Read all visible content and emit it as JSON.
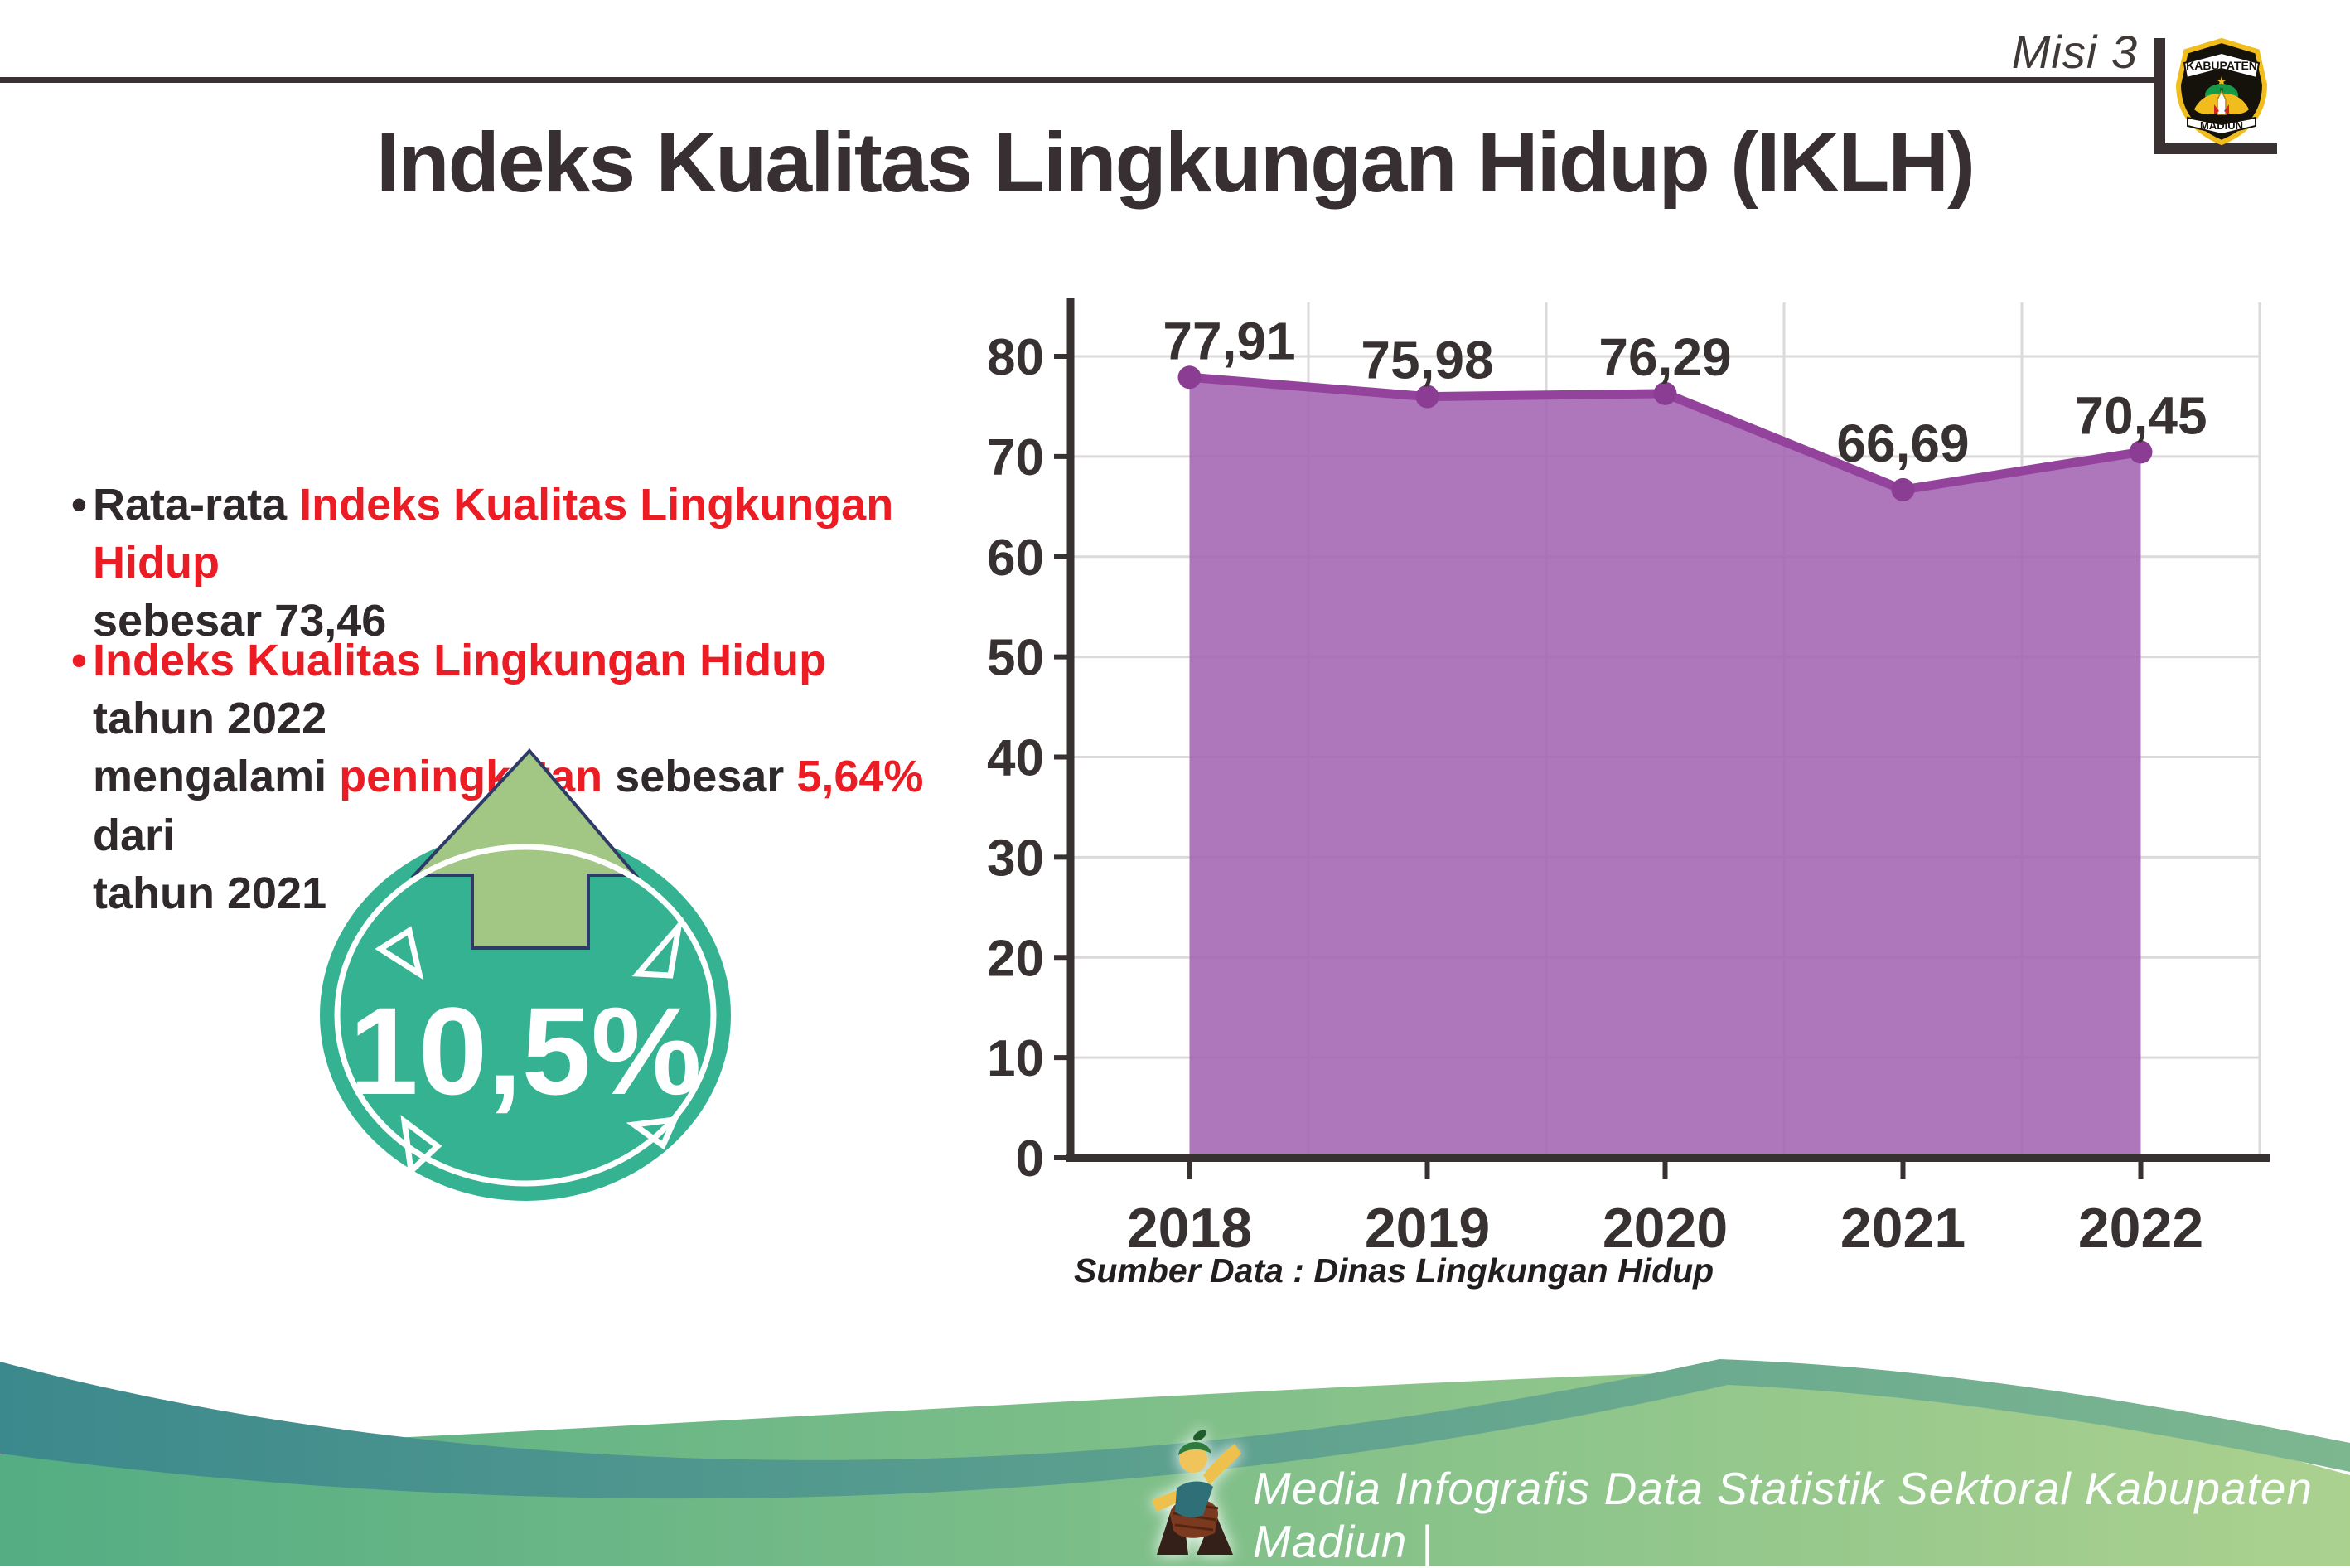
{
  "header": {
    "mission": "Misi 3",
    "title": "Indeks Kualitas Lingkungan Hidup (IKLH)"
  },
  "logo": {
    "top": "KABUPATEN",
    "bottom": "MADIUN"
  },
  "bullets": {
    "b1_dot": "•",
    "b1_p1": "Rata-rata ",
    "b1_red": "Indeks Kualitas Lingkungan Hidup",
    "b1_p2": "sebesar 73,46",
    "b2_dot": "•",
    "b2_red1": "Indeks Kualitas Lingkungan Hidup",
    "b2_p1a": " tahun 2022",
    "b2_p1b": "mengalami ",
    "b2_red2": "peningkatan",
    "b2_p2": " sebesar ",
    "b2_red3": "5,64%",
    "b2_p3a": " dari",
    "b2_p3b": "tahun 2021"
  },
  "badge": {
    "value": "10,5%"
  },
  "chart_data": {
    "type": "area",
    "title": "Indeks Kualitas Lingkungan Hidup (IKLH)",
    "categories": [
      "2018",
      "2019",
      "2020",
      "2021",
      "2022"
    ],
    "values": [
      77.91,
      75.98,
      76.29,
      66.69,
      70.45
    ],
    "point_labels": [
      "77,91",
      "75,98",
      "76,29",
      "66,69",
      "70,45"
    ],
    "xlabel": "",
    "ylabel": "",
    "ylim": [
      0,
      80
    ],
    "yticks": [
      0,
      10,
      20,
      30,
      40,
      50,
      60,
      70,
      80
    ],
    "grid": true,
    "legend": "none",
    "fill_color": "rgba(164,100,178,0.88)",
    "line_color": "#93439c",
    "point_color": "#8a3d92",
    "axis_color": "#383132",
    "grid_color": "#dbd9d9",
    "label_color": "#383132",
    "source": "Sumber Data : Dinas Lingkungan Hidup"
  },
  "footer": {
    "credit": "Media Infografis Data Statistik Sektoral Kabupaten Madiun |"
  },
  "colors": {
    "accent_red": "#ec1c24",
    "text_dark": "#383132",
    "badge_teal": "#35b291",
    "arrow_green": "#a2c683",
    "arrow_outline_navy": "#2e3b67",
    "footer_teal_left": "#3c898d",
    "footer_teal_right": "#7db790",
    "footer_green_left": "#54ad83",
    "footer_green_right": "#abd18f"
  }
}
